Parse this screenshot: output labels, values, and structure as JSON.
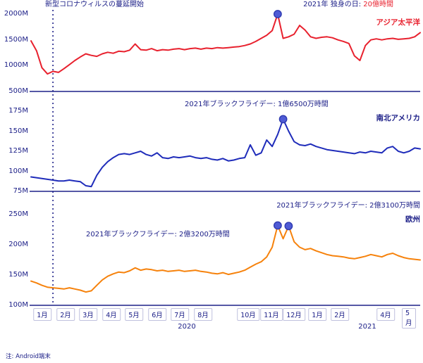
{
  "note": "注: Android端末",
  "palette": {
    "text_navy": "#1d2088",
    "asia_pacific_red": "#e8212e",
    "americas_blue": "#1f2cba",
    "europe_orange": "#f6820c",
    "marker_fill": "#4f5bd5",
    "marker_stroke": "#2e3ab0"
  },
  "annotations": {
    "covid": "新型コロナウィルスの蔓延開始",
    "singles_day_label": "2021年 独身の日: ",
    "singles_day_value": "20億時間",
    "bf_americas": "2021年ブラックフライデー: 1億6500万時間",
    "bf_europe_left": "2021年ブラックフライデー: 2億3200万時間",
    "bf_europe_right": "2021年ブラックフライデー: 2億3100万時間"
  },
  "chart_data": {
    "type": "line",
    "x_unit": "week",
    "x_range": "2020年1月〜2021年5月",
    "covid_week_index": 4,
    "x_ticks": [
      {
        "label": "1月",
        "month": 0
      },
      {
        "label": "2月",
        "month": 1
      },
      {
        "label": "3月",
        "month": 2
      },
      {
        "label": "4月",
        "month": 3
      },
      {
        "label": "5月",
        "month": 4
      },
      {
        "label": "6月",
        "month": 5
      },
      {
        "label": "7月",
        "month": 6
      },
      {
        "label": "8月",
        "month": 7
      },
      {
        "label": "10月",
        "month": 9
      },
      {
        "label": "11月",
        "month": 10
      },
      {
        "label": "12月",
        "month": 11
      },
      {
        "label": "1月",
        "month": 12
      },
      {
        "label": "2月",
        "month": 13
      },
      {
        "label": "4月",
        "month": 15
      },
      {
        "label": "5月",
        "month": 16
      }
    ],
    "x_years": [
      {
        "label": "2020",
        "month_center": 6.3
      },
      {
        "label": "2021",
        "month_center": 14.2
      }
    ],
    "panels": [
      {
        "name": "asia_pacific",
        "label": "アジア太平洋",
        "color": "#e8212e",
        "unit": "M",
        "y_min": 500,
        "y_max": 2000,
        "y_ticks": [
          {
            "label": "2000M",
            "value": 2000
          },
          {
            "label": "1500M",
            "value": 1500
          },
          {
            "label": "1000M",
            "value": 1000
          },
          {
            "label": "500M",
            "value": 500
          }
        ],
        "values": [
          1480,
          1290,
          960,
          840,
          890,
          870,
          940,
          1020,
          1100,
          1170,
          1230,
          1200,
          1180,
          1230,
          1260,
          1240,
          1280,
          1270,
          1300,
          1420,
          1310,
          1300,
          1330,
          1290,
          1310,
          1300,
          1320,
          1330,
          1310,
          1330,
          1340,
          1320,
          1340,
          1330,
          1350,
          1340,
          1350,
          1360,
          1370,
          1390,
          1420,
          1470,
          1530,
          1590,
          1680,
          2000,
          1530,
          1560,
          1610,
          1780,
          1690,
          1560,
          1530,
          1550,
          1560,
          1540,
          1500,
          1470,
          1430,
          1190,
          1100,
          1390,
          1500,
          1520,
          1500,
          1520,
          1530,
          1510,
          1520,
          1530,
          1560,
          1640
        ],
        "markers": [
          {
            "index": 45,
            "value": 2000
          }
        ]
      },
      {
        "name": "americas",
        "label": "南北アメリカ",
        "color": "#1f2cba",
        "unit": "M",
        "y_min": 75,
        "y_max": 175,
        "y_ticks": [
          {
            "label": "175M",
            "value": 175
          },
          {
            "label": "150M",
            "value": 150
          },
          {
            "label": "125M",
            "value": 125
          },
          {
            "label": "100M",
            "value": 100
          },
          {
            "label": "75M",
            "value": 75
          }
        ],
        "values": [
          93,
          92,
          91,
          90,
          89,
          88,
          88,
          89,
          88,
          87,
          82,
          81,
          95,
          105,
          112,
          117,
          121,
          122,
          121,
          123,
          125,
          121,
          119,
          123,
          117,
          116,
          118,
          117,
          118,
          119,
          117,
          116,
          117,
          115,
          114,
          116,
          113,
          114,
          116,
          117,
          133,
          120,
          123,
          139,
          131,
          146,
          165,
          150,
          137,
          133,
          132,
          134,
          131,
          129,
          127,
          126,
          125,
          124,
          123,
          122,
          124,
          123,
          125,
          124,
          123,
          129,
          131,
          125,
          123,
          125,
          129,
          128
        ],
        "markers": [
          {
            "index": 46,
            "value": 165
          }
        ]
      },
      {
        "name": "europe",
        "label": "欧州",
        "color": "#f6820c",
        "unit": "M",
        "y_min": 100,
        "y_max": 250,
        "y_ticks": [
          {
            "label": "250M",
            "value": 250
          },
          {
            "label": "200M",
            "value": 200
          },
          {
            "label": "150M",
            "value": 150
          },
          {
            "label": "100M",
            "value": 100
          }
        ],
        "values": [
          140,
          137,
          133,
          130,
          129,
          128,
          127,
          129,
          127,
          125,
          122,
          124,
          133,
          142,
          148,
          152,
          155,
          154,
          157,
          162,
          158,
          160,
          159,
          157,
          158,
          156,
          157,
          158,
          156,
          157,
          158,
          156,
          155,
          153,
          152,
          154,
          151,
          153,
          155,
          158,
          163,
          168,
          172,
          180,
          196,
          232,
          210,
          231,
          205,
          196,
          192,
          194,
          190,
          187,
          184,
          182,
          181,
          180,
          178,
          177,
          179,
          181,
          184,
          182,
          180,
          184,
          186,
          182,
          179,
          177,
          176,
          175
        ],
        "markers": [
          {
            "index": 45,
            "value": 232
          },
          {
            "index": 47,
            "value": 231
          }
        ]
      }
    ]
  }
}
